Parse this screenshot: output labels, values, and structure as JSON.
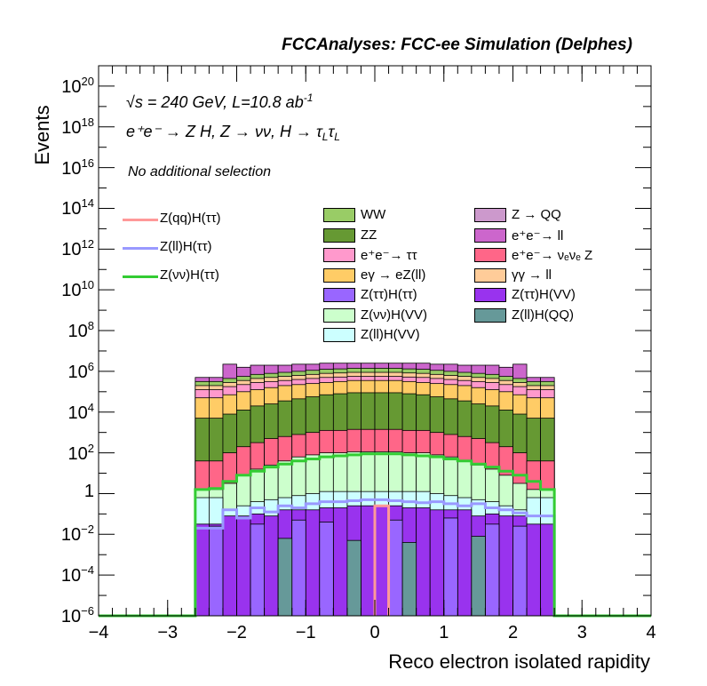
{
  "chart_data": {
    "type": "histogram-stack",
    "header": "FCCAnalyses: FCC-ee Simulation (Delphes)",
    "xlabel": "Reco electron isolated rapidity",
    "ylabel": "Events",
    "xlim": [
      -4,
      4
    ],
    "ylim_log10": [
      -6,
      21
    ],
    "yscale": "log",
    "x_ticks": [
      "−4",
      "−3",
      "−2",
      "−1",
      "0",
      "1",
      "2",
      "3",
      "4"
    ],
    "y_ticks": [
      {
        "exp": 20,
        "label": "10",
        "sup": "20"
      },
      {
        "exp": 18,
        "label": "10",
        "sup": "18"
      },
      {
        "exp": 16,
        "label": "10",
        "sup": "16"
      },
      {
        "exp": 14,
        "label": "10",
        "sup": "14"
      },
      {
        "exp": 12,
        "label": "10",
        "sup": "12"
      },
      {
        "exp": 10,
        "label": "10",
        "sup": "10"
      },
      {
        "exp": 8,
        "label": "10",
        "sup": "8"
      },
      {
        "exp": 6,
        "label": "10",
        "sup": "6"
      },
      {
        "exp": 4,
        "label": "10",
        "sup": "4"
      },
      {
        "exp": 2,
        "label": "10",
        "sup": "2"
      },
      {
        "exp": 0,
        "label": "1",
        "sup": ""
      },
      {
        "exp": -2,
        "label": "10",
        "sup": "−2"
      },
      {
        "exp": -4,
        "label": "10",
        "sup": "−4"
      },
      {
        "exp": -6,
        "label": "10",
        "sup": "−6"
      }
    ],
    "annotations": {
      "energy": "s = 240 GeV, L=10.8 ab",
      "energy_sup": "-1",
      "process": "e⁺e⁻ → Z H, Z → νν, H → τ",
      "process_sub1": "L",
      "process_tau": "τ",
      "process_sub2": "L",
      "selection": "No additional selection"
    },
    "bin_edges": [
      -2.6,
      -2.4,
      -2.2,
      -2.0,
      -1.8,
      -1.6,
      -1.4,
      -1.2,
      -1.0,
      -0.8,
      -0.6,
      -0.4,
      -0.2,
      0.0,
      0.2,
      0.4,
      0.6,
      0.8,
      1.0,
      1.2,
      1.4,
      1.6,
      1.8,
      2.0,
      2.2,
      2.4,
      2.6
    ],
    "stack_log10_tops": [
      {
        "name": "Z(ττ)H(VV)",
        "color": "#9933ee",
        "values": [
          -1.5,
          -1.5,
          -1.1,
          -1.1,
          -1.0,
          -1.1,
          -0.8,
          -0.8,
          -0.8,
          -0.7,
          -0.7,
          -0.6,
          -0.6,
          -0.6,
          -0.6,
          -0.7,
          -0.7,
          -0.8,
          -0.8,
          -0.8,
          -1.1,
          -1.0,
          -1.1,
          -1.1,
          -1.5,
          -1.5
        ]
      },
      {
        "name": "Z(ll)H(VV)",
        "color": "#ccffff",
        "values": [
          -0.2,
          -0.2,
          -0.8,
          -0.6,
          -0.4,
          -0.3,
          -0.2,
          -0.1,
          0.0,
          0.1,
          0.1,
          0.1,
          0.1,
          0.1,
          0.1,
          0.1,
          0.1,
          0.0,
          -0.1,
          -0.2,
          -0.3,
          -0.4,
          -0.6,
          -0.8,
          -0.2,
          -0.2
        ]
      },
      {
        "name": "Z(νν)H(VV)",
        "color": "#ccffcc",
        "values": [
          0.2,
          0.2,
          0.5,
          0.9,
          1.2,
          1.4,
          1.6,
          1.8,
          1.9,
          2.0,
          2.0,
          2.05,
          2.05,
          2.05,
          2.05,
          2.0,
          2.0,
          1.9,
          1.8,
          1.6,
          1.4,
          1.2,
          0.9,
          0.5,
          0.2,
          0.2
        ]
      },
      {
        "name": "e⁺e⁻→ νₑνₑ Z",
        "color": "#ff6688",
        "values": [
          1.6,
          1.6,
          2.0,
          2.3,
          2.5,
          2.7,
          2.8,
          2.9,
          3.0,
          3.1,
          3.1,
          3.15,
          3.15,
          3.15,
          3.15,
          3.1,
          3.1,
          3.0,
          2.9,
          2.8,
          2.7,
          2.5,
          2.3,
          2.0,
          1.6,
          1.6
        ]
      },
      {
        "name": "ZZ",
        "color": "#669933",
        "values": [
          3.7,
          3.7,
          3.9,
          4.1,
          4.3,
          4.4,
          4.55,
          4.65,
          4.75,
          4.85,
          4.9,
          4.95,
          4.95,
          4.95,
          4.95,
          4.9,
          4.85,
          4.75,
          4.65,
          4.55,
          4.4,
          4.3,
          4.1,
          3.9,
          3.7,
          3.7
        ]
      },
      {
        "name": "eγ → eZ(ll)",
        "color": "#ffcc66",
        "values": [
          4.7,
          4.7,
          4.85,
          5.0,
          5.1,
          5.2,
          5.3,
          5.35,
          5.4,
          5.45,
          5.5,
          5.55,
          5.55,
          5.55,
          5.55,
          5.5,
          5.45,
          5.4,
          5.35,
          5.3,
          5.2,
          5.1,
          5.0,
          4.85,
          4.7,
          4.7
        ]
      },
      {
        "name": "e⁺e⁻→ ττ",
        "color": "#ff99cc",
        "values": [
          5.1,
          5.1,
          5.25,
          5.35,
          5.45,
          5.5,
          5.55,
          5.6,
          5.65,
          5.7,
          5.72,
          5.75,
          5.75,
          5.75,
          5.75,
          5.72,
          5.7,
          5.65,
          5.6,
          5.55,
          5.5,
          5.45,
          5.35,
          5.25,
          5.1,
          5.1
        ]
      },
      {
        "name": "γγ → ll",
        "color": "#ffcc99",
        "values": [
          5.3,
          5.3,
          5.45,
          5.55,
          5.65,
          5.7,
          5.75,
          5.8,
          5.85,
          5.9,
          5.92,
          5.95,
          5.95,
          5.95,
          5.95,
          5.92,
          5.9,
          5.85,
          5.8,
          5.75,
          5.7,
          5.65,
          5.55,
          5.45,
          5.3,
          5.3
        ]
      },
      {
        "name": "WW",
        "color": "#99cc66",
        "values": [
          5.5,
          5.5,
          5.65,
          5.75,
          5.85,
          5.9,
          5.95,
          6.0,
          6.05,
          6.1,
          6.12,
          6.15,
          6.15,
          6.15,
          6.15,
          6.12,
          6.1,
          6.05,
          6.0,
          5.95,
          5.9,
          5.85,
          5.75,
          5.65,
          5.5,
          5.5
        ]
      },
      {
        "name": "e⁺e⁻→ ll",
        "color": "#cc66cc",
        "values": [
          5.7,
          5.7,
          6.35,
          6.2,
          6.3,
          6.3,
          6.3,
          6.35,
          6.35,
          6.4,
          6.4,
          6.4,
          6.4,
          6.4,
          6.4,
          6.4,
          6.4,
          6.35,
          6.35,
          6.3,
          6.3,
          6.3,
          6.2,
          6.35,
          5.7,
          5.7
        ]
      }
    ],
    "background_bins": [
      {
        "name": "Z → QQ",
        "color": "#cc99cc",
        "left": [
          -2.6,
          -2.4
        ],
        "right": [
          2.2,
          2.6
        ],
        "log10": 0.3
      },
      {
        "name": "Z(ττ)H(ττ)",
        "color": "#9966ff",
        "bins": [
          [
            -2.4,
            -2.2,
            -1.6
          ],
          [
            -1.8,
            -1.6,
            -1.5
          ],
          [
            -1.2,
            -1.0,
            -1.3
          ],
          [
            -0.8,
            -0.6,
            -1.4
          ],
          [
            0.2,
            0.4,
            -1.3
          ],
          [
            1.0,
            1.2,
            -1.2
          ],
          [
            1.6,
            1.8,
            -1.5
          ],
          [
            2.0,
            2.2,
            -1.6
          ]
        ]
      },
      {
        "name": "Z(ll)H(QQ)",
        "color": "#669999",
        "bins": [
          [
            -1.4,
            -1.2,
            -2.2
          ],
          [
            -0.4,
            -0.2,
            -2.3
          ],
          [
            0.4,
            0.6,
            -2.4
          ],
          [
            1.4,
            1.6,
            -2.1
          ]
        ]
      }
    ],
    "lines": [
      {
        "name": "Z(qq)H(ττ)",
        "color": "#ff9999",
        "bins": [
          [
            0.0,
            0.2,
            -0.6
          ]
        ]
      },
      {
        "name": "Z(ll)H(ττ)",
        "color": "#9999ff",
        "values": [
          -1.7,
          -1.7,
          -0.8,
          -1.2,
          -0.7,
          -0.9,
          -0.6,
          -0.7,
          -0.5,
          -0.4,
          -0.4,
          -0.35,
          -0.3,
          -0.3,
          -0.35,
          -0.4,
          -0.45,
          -0.4,
          -0.5,
          -0.6,
          -0.5,
          -0.7,
          -0.8,
          -0.95,
          -1.1,
          -1.1
        ]
      },
      {
        "name": "Z(νν)H(ττ)",
        "color": "#33cc33",
        "values": [
          0.2,
          0.25,
          0.6,
          0.9,
          1.1,
          1.3,
          1.45,
          1.6,
          1.7,
          1.8,
          1.85,
          1.9,
          1.95,
          1.95,
          1.95,
          1.9,
          1.85,
          1.8,
          1.7,
          1.6,
          1.45,
          1.3,
          1.1,
          0.9,
          0.6,
          0.2
        ]
      }
    ],
    "legend_left": [
      {
        "label": "Z(qq)H(ττ)",
        "color": "#ff9999"
      },
      {
        "label": "Z(ll)H(ττ)",
        "color": "#9999ff"
      },
      {
        "label": "Z(νν)H(ττ)",
        "color": "#33cc33"
      }
    ],
    "legend_col1": [
      {
        "label": "WW",
        "color": "#99cc66"
      },
      {
        "label": "ZZ",
        "color": "#669933"
      },
      {
        "label": "e⁺e⁻→ ττ",
        "color": "#ff99cc"
      },
      {
        "label": "eγ → eZ(ll)",
        "color": "#ffcc66"
      },
      {
        "label": "Z(ττ)H(ττ)",
        "color": "#9966ff"
      },
      {
        "label": "Z(νν)H(VV)",
        "color": "#ccffcc"
      },
      {
        "label": "Z(ll)H(VV)",
        "color": "#ccffff"
      }
    ],
    "legend_col2": [
      {
        "label": "Z → QQ",
        "color": "#cc99cc"
      },
      {
        "label": "e⁺e⁻→ ll",
        "color": "#cc66cc"
      },
      {
        "label": "e⁺e⁻→ νₑνₑ Z",
        "color": "#ff6688"
      },
      {
        "label": "γγ → ll",
        "color": "#ffcc99"
      },
      {
        "label": "Z(ττ)H(VV)",
        "color": "#9933ee"
      },
      {
        "label": "Z(ll)H(QQ)",
        "color": "#669999"
      }
    ]
  }
}
